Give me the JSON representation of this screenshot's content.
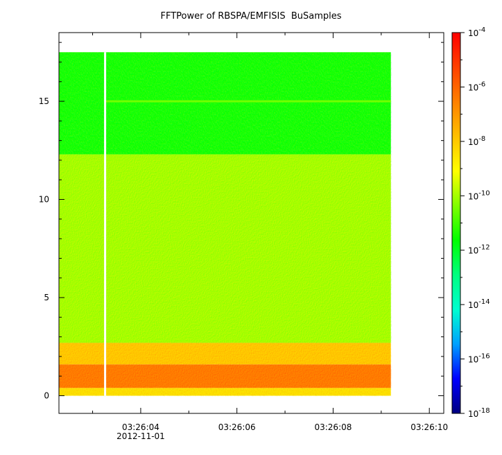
{
  "chart_data": {
    "type": "heatmap",
    "title": "FFTPower of RBSPA/EMFISIS  BuSamples",
    "x": {
      "ticks": [
        "03:26:04",
        "03:26:06",
        "03:26:08",
        "03:26:10"
      ],
      "sublabel": "2012-11-01",
      "range_seconds": [
        2.3,
        10.3
      ],
      "tick_seconds": [
        4,
        6,
        8,
        10
      ],
      "minor_tick_seconds": [
        3,
        5,
        7,
        9
      ],
      "data_seconds": [
        2.3,
        9.2
      ],
      "gap_seconds": 3.26
    },
    "y": {
      "ticks": [
        0,
        5,
        10,
        15
      ],
      "range": [
        -0.9,
        18.5
      ],
      "data_range": [
        0,
        17.5
      ]
    },
    "colorbar": {
      "scale": "log",
      "range": [
        1e-18,
        0.0001
      ],
      "ticks": [
        "10^-4",
        "10^-6",
        "10^-8",
        "10^-10",
        "10^-12",
        "10^-14",
        "10^-16",
        "10^-18"
      ],
      "tick_exponents": [
        -4,
        -6,
        -8,
        -10,
        -12,
        -14,
        -16,
        -18
      ],
      "colormap": [
        "#000080",
        "#0000ff",
        "#00a0ff",
        "#00ffd0",
        "#00ff80",
        "#00ff00",
        "#80ff00",
        "#ffff00",
        "#ffc000",
        "#ff8000",
        "#ff4000",
        "#ff0000"
      ]
    },
    "bands": [
      {
        "y": [
          0,
          0.4
        ],
        "log_power": -8.5
      },
      {
        "y": [
          0.4,
          1.6
        ],
        "log_power": -6.5
      },
      {
        "y": [
          1.6,
          2.7
        ],
        "log_power": -8.0
      },
      {
        "y": [
          2.7,
          12.3
        ],
        "log_power": -10.0
      },
      {
        "y": [
          12.3,
          17.5
        ],
        "log_power": -11.5
      }
    ],
    "line_feature": {
      "y": 15.0,
      "log_power": -10.5
    }
  }
}
